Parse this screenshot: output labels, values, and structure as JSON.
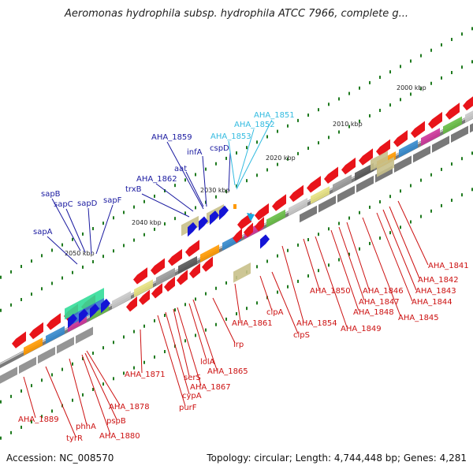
{
  "header": {
    "title": "Aeromonas hydrophila subsp. hydrophila ATCC 7966, complete g..."
  },
  "footer": {
    "accession": "Accession: NC_008570",
    "summary": "Topology: circular; Length: 4,744,448 bp; Genes: 4,281"
  },
  "colors": {
    "forward_gene": "#e8141a",
    "reverse_gene": "#1414d6",
    "highlight_gene": "#1aa7e0",
    "backbone": "#8a8a8a",
    "tick": "#1f7a1f",
    "label_blue": "#1a1aa0",
    "label_red": "#cc1111",
    "label_cyan": "#33bbe0"
  },
  "scale_labels": [
    "2000 kbp",
    "2010 kbp",
    "2020 kbp",
    "2030 kbp",
    "2040 kbp",
    "2050 kbp"
  ],
  "gene_labels": {
    "blue": [
      "AHA_1859",
      "infA",
      "aat",
      "cspD",
      "AHA_1862",
      "trxB",
      "sapB",
      "sapC",
      "sapD",
      "sapF",
      "sapA"
    ],
    "cyan": [
      "AHA_1851",
      "AHA_1852",
      "AHA_1853"
    ],
    "red": [
      "AHA_1841",
      "AHA_1842",
      "AHA_1843",
      "AHA_1844",
      "AHA_1845",
      "AHA_1846",
      "AHA_1847",
      "AHA_1848",
      "AHA_1849",
      "AHA_1850",
      "AHA_1854",
      "clpA",
      "clpS",
      "AHA_1861",
      "lrp",
      "AHA_1865",
      "lolA",
      "AHA_1867",
      "serS",
      "cypA",
      "purF",
      "AHA_1871",
      "AHA_1878",
      "pspB",
      "AHA_1880",
      "phhA",
      "tyrR",
      "AHA_1889"
    ]
  }
}
